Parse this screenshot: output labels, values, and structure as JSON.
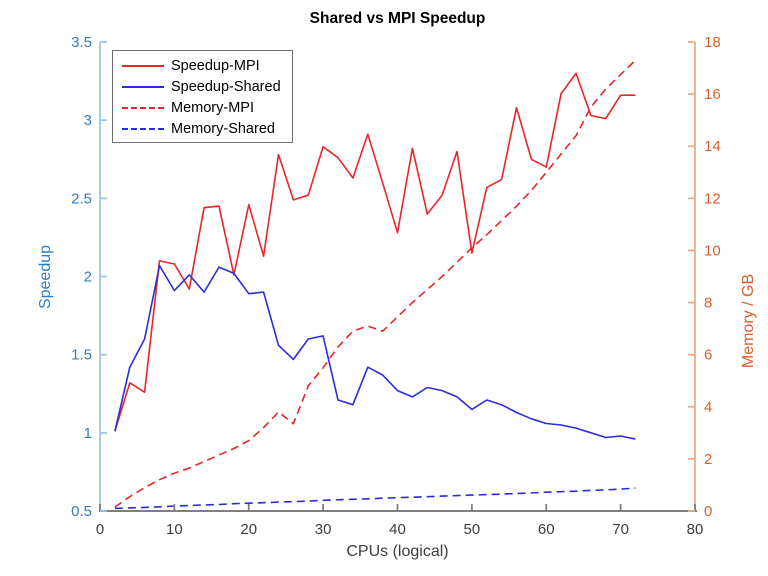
{
  "chart_data": {
    "type": "line",
    "title": "Shared vs MPI Speedup",
    "xlabel": "CPUs (logical)",
    "ylabel_left": "Speedup",
    "ylabel_right": "Memory / GB",
    "x_axis": {
      "min": 0,
      "max": 80,
      "ticks": [
        0,
        10,
        20,
        30,
        40,
        50,
        60,
        70,
        80
      ],
      "label_color": "#3d3d3d",
      "spine_color": "#808080"
    },
    "y_axis_left": {
      "min": 0.5,
      "max": 3.5,
      "ticks": [
        0.5,
        1,
        1.5,
        2,
        2.5,
        3,
        3.5
      ],
      "label_color": "#2e7fbf",
      "spine_color": "#9fc4e4"
    },
    "y_axis_right": {
      "min": 0,
      "max": 18,
      "ticks": [
        0,
        2,
        4,
        6,
        8,
        10,
        12,
        14,
        16,
        18
      ],
      "label_color": "#d95f2e",
      "spine_color": "#eeab85"
    },
    "grid": false,
    "legend_position": "top-left",
    "x": [
      2,
      4,
      6,
      8,
      10,
      12,
      14,
      16,
      18,
      20,
      22,
      24,
      26,
      28,
      30,
      32,
      34,
      36,
      38,
      40,
      42,
      44,
      46,
      48,
      50,
      52,
      54,
      56,
      58,
      60,
      62,
      64,
      66,
      68,
      70,
      72
    ],
    "series": [
      {
        "name": "Speedup-MPI",
        "axis": "left",
        "color": "#e8262a",
        "style": "solid",
        "values": [
          1.01,
          1.32,
          1.26,
          2.1,
          2.08,
          1.92,
          2.44,
          2.45,
          2.01,
          2.46,
          2.13,
          2.78,
          2.49,
          2.52,
          2.83,
          2.76,
          2.63,
          2.91,
          2.6,
          2.28,
          2.82,
          2.4,
          2.52,
          2.8,
          2.15,
          2.57,
          2.62,
          3.08,
          2.75,
          2.7,
          3.17,
          3.3,
          3.03,
          3.01,
          3.16,
          3.16
        ]
      },
      {
        "name": "Speedup-Shared",
        "axis": "left",
        "color": "#2b2ddb",
        "style": "solid",
        "values": [
          1.01,
          1.42,
          1.6,
          2.07,
          1.91,
          2.01,
          1.9,
          2.06,
          2.02,
          1.89,
          1.9,
          1.56,
          1.47,
          1.6,
          1.62,
          1.21,
          1.18,
          1.42,
          1.37,
          1.27,
          1.23,
          1.29,
          1.27,
          1.23,
          1.15,
          1.21,
          1.18,
          1.13,
          1.09,
          1.06,
          1.05,
          1.03,
          1.0,
          0.97,
          0.98,
          0.96
        ]
      },
      {
        "name": "Memory-MPI",
        "axis": "right",
        "color": "#e8262a",
        "style": "dashed",
        "values": [
          0.15,
          0.55,
          0.9,
          1.2,
          1.45,
          1.65,
          1.9,
          2.15,
          2.4,
          2.7,
          3.2,
          3.8,
          3.35,
          4.8,
          5.5,
          6.3,
          6.9,
          7.1,
          6.9,
          7.45,
          8.0,
          8.5,
          9.0,
          9.55,
          10.1,
          10.6,
          11.15,
          11.7,
          12.3,
          13.0,
          13.7,
          14.4,
          15.5,
          16.2,
          16.75,
          17.3
        ]
      },
      {
        "name": "Memory-Shared",
        "axis": "right",
        "color": "#2b2ddb",
        "style": "dashed",
        "values": [
          0.1,
          0.12,
          0.14,
          0.16,
          0.19,
          0.21,
          0.23,
          0.25,
          0.28,
          0.3,
          0.32,
          0.34,
          0.36,
          0.38,
          0.41,
          0.43,
          0.45,
          0.47,
          0.49,
          0.51,
          0.53,
          0.55,
          0.57,
          0.59,
          0.61,
          0.63,
          0.65,
          0.67,
          0.69,
          0.72,
          0.74,
          0.76,
          0.79,
          0.81,
          0.84,
          0.88
        ]
      }
    ]
  }
}
